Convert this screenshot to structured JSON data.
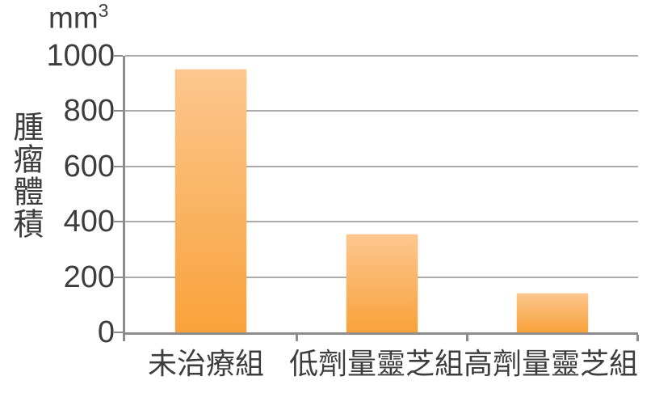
{
  "chart": {
    "unit_base": "mm",
    "unit_exponent": "3"
  },
  "chart_data": {
    "type": "bar",
    "title": "",
    "categories": [
      "未治療組",
      "低劑量靈芝組",
      "高劑量靈芝組"
    ],
    "values": [
      950,
      355,
      140
    ],
    "xlabel": "",
    "ylabel": "腫瘤體積",
    "unit": "mm³",
    "yticks": [
      1000,
      800,
      600,
      400,
      200,
      0
    ],
    "ylim": [
      0,
      1000
    ],
    "grid": true,
    "legend_position": "none",
    "colors": {
      "bar_gradient_top": "#fcc78e",
      "bar_gradient_bottom": "#f9a23b",
      "gridline": "#ababab",
      "axis": "#8c8c8c",
      "text": "#3d3d3d"
    }
  }
}
